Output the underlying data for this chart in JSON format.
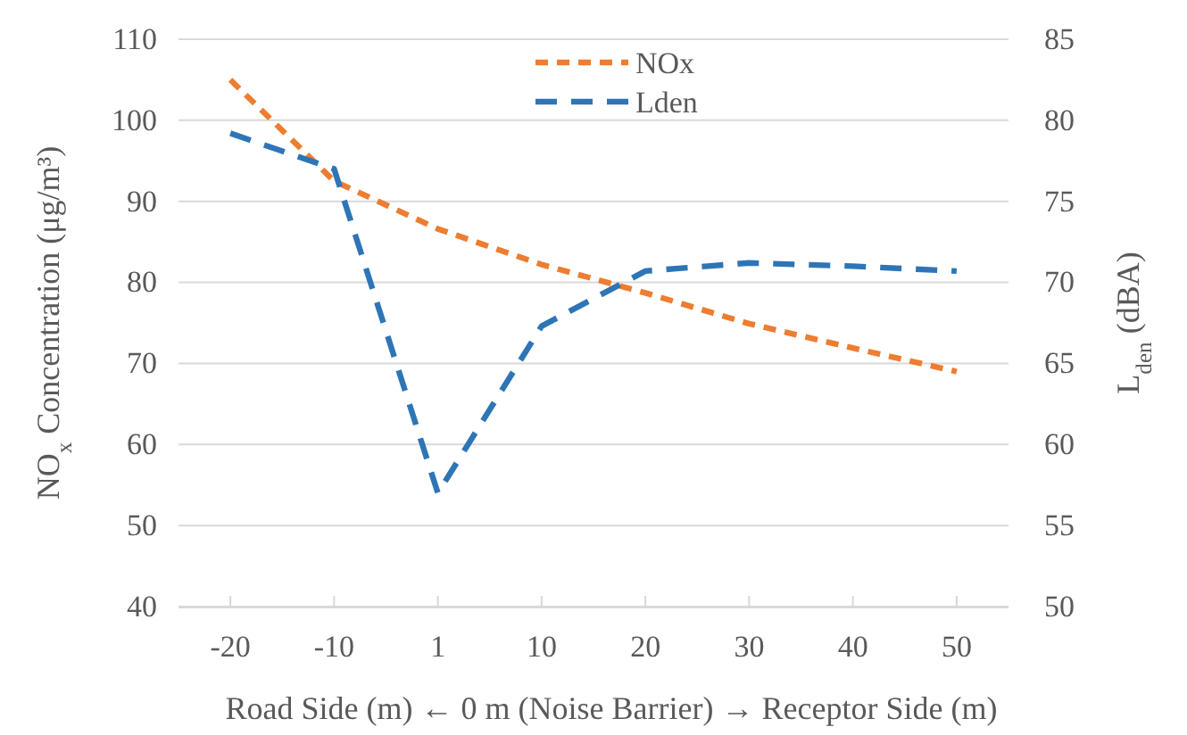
{
  "chart_data": {
    "type": "line",
    "categories": [
      "-20",
      "-10",
      "1",
      "10",
      "20",
      "30",
      "40",
      "50"
    ],
    "series": [
      {
        "name": "NOx",
        "color": "#ed7d31",
        "line_style": "dashed",
        "values": [
          105,
          92.5,
          86.6,
          82.2,
          78.7,
          74.9,
          71.9,
          69
        ]
      },
      {
        "name": "Lden",
        "color": "#2e75b6",
        "line_style": "dashed",
        "axis": "y2",
        "values": [
          79.2,
          77,
          57,
          67.3,
          70.7,
          71.2,
          71,
          70.7
        ]
      }
    ],
    "xlabel": "Road Side (m) ← 0 m (Noise Barrier) → Receptor Side (m)",
    "ylabel": "NO$_{x}$ Concentration (μg/m³)",
    "y2label": "L$_{den}$ (dBA)",
    "ylim": [
      40,
      110
    ],
    "yticks": [
      40,
      50,
      60,
      70,
      80,
      90,
      100,
      110
    ],
    "y2lim": [
      50,
      85
    ],
    "y2ticks": [
      50,
      55,
      60,
      65,
      70,
      75,
      80,
      85
    ],
    "grid": "y",
    "legend": "top right",
    "marker": "none"
  }
}
